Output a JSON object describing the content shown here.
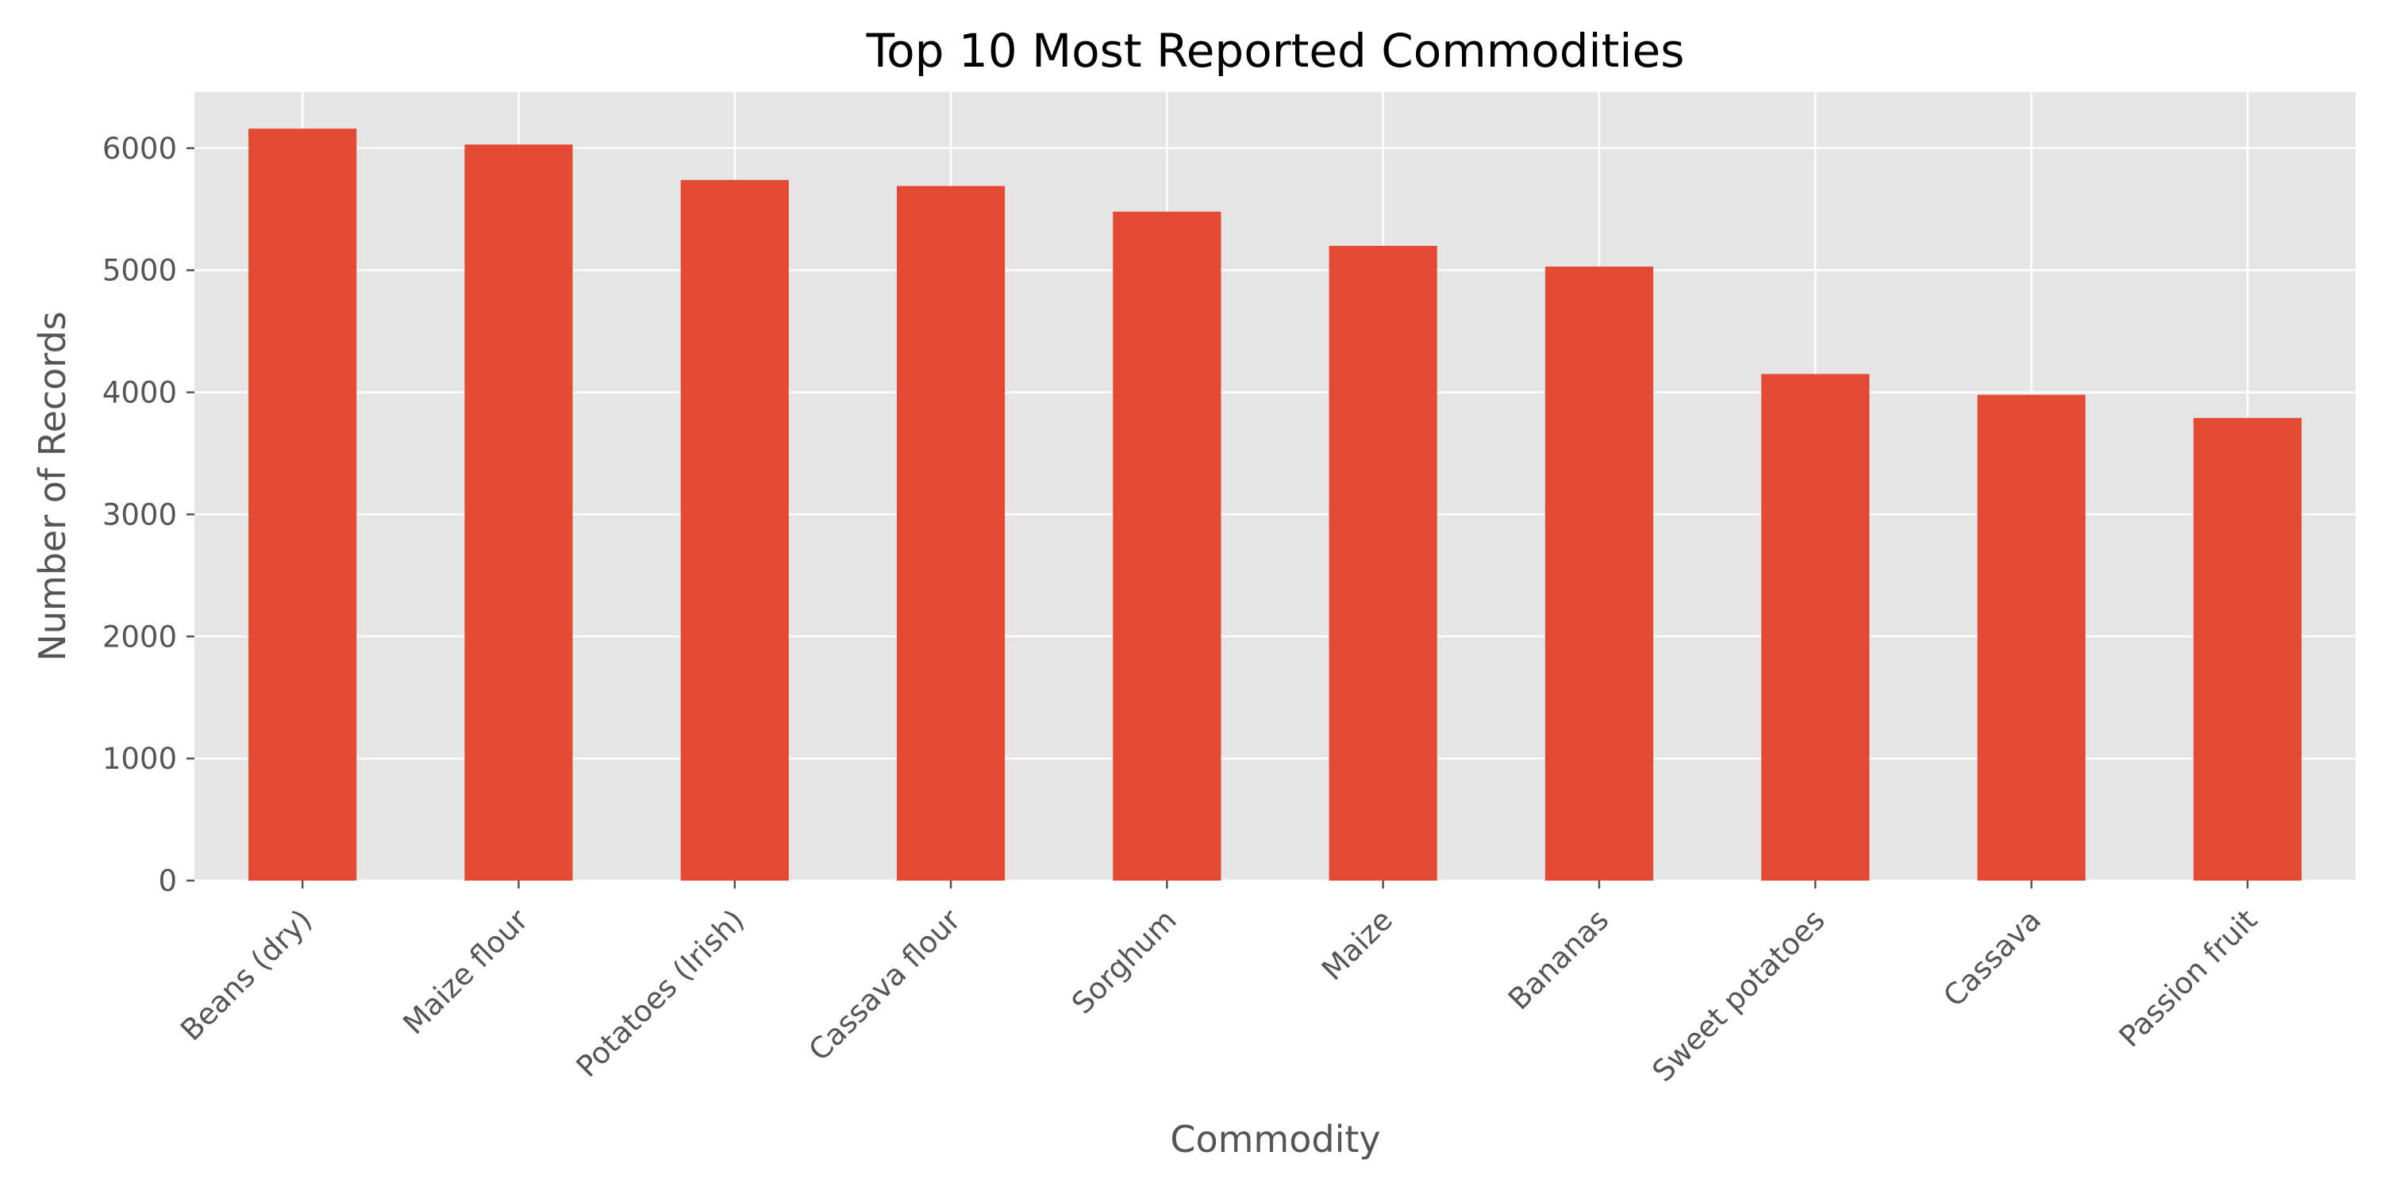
{
  "chart_data": {
    "type": "bar",
    "title": "Top 10 Most Reported Commodities",
    "xlabel": "Commodity",
    "ylabel": "Number of Records",
    "categories": [
      "Beans (dry)",
      "Maize flour",
      "Potatoes (Irish)",
      "Cassava flour",
      "Sorghum",
      "Maize",
      "Bananas",
      "Sweet potatoes",
      "Cassava",
      "Passion fruit"
    ],
    "values": [
      6160,
      6030,
      5740,
      5690,
      5480,
      5200,
      5030,
      4150,
      3980,
      3790
    ],
    "yticks": [
      0,
      1000,
      2000,
      3000,
      4000,
      5000,
      6000
    ],
    "ylim": [
      0,
      6460
    ],
    "grid": true,
    "x_tick_rotation": "45 degrees",
    "colors": {
      "bar": "#E24A33",
      "plot_background": "#E5E5E5",
      "grid": "#FFFFFF",
      "figure_background": "#FFFFFF"
    }
  }
}
